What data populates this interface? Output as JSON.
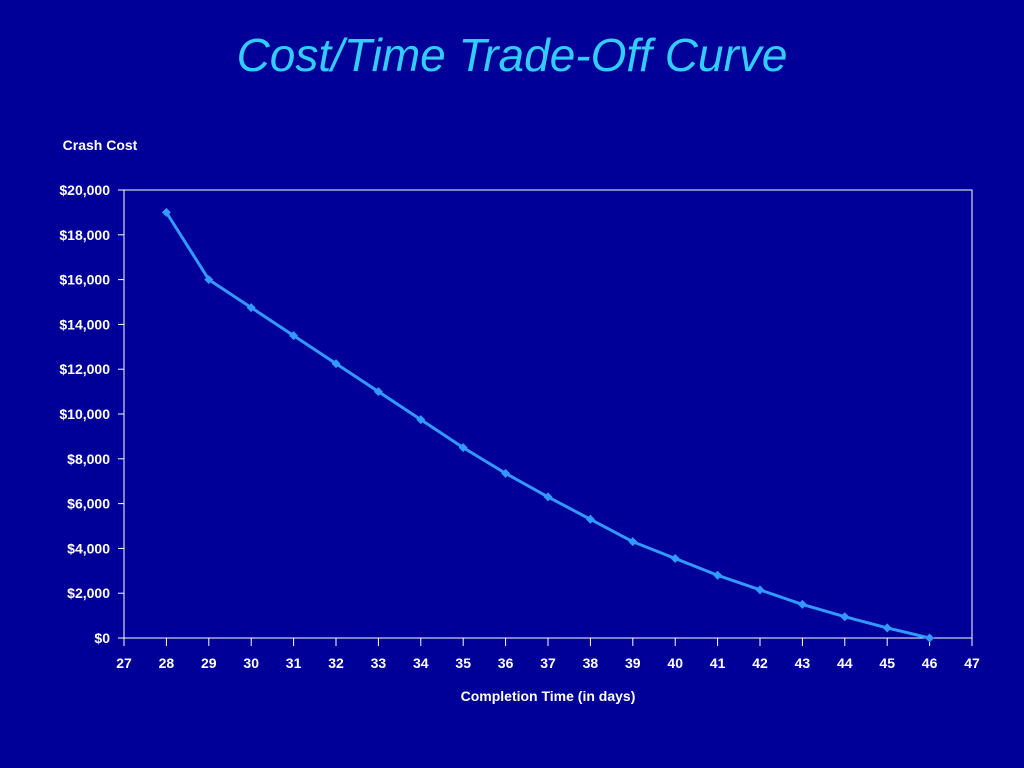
{
  "slide": {
    "title": "Cost/Time Trade-Off Curve",
    "background_color": "#000099",
    "title_color": "#33CCFF"
  },
  "chart_data": {
    "type": "line",
    "title": "",
    "xlabel": "Completion Time (in days)",
    "ylabel": "Crash Cost",
    "xlim": [
      27,
      47
    ],
    "ylim": [
      0,
      20000
    ],
    "x_ticks": [
      27,
      28,
      29,
      30,
      31,
      32,
      33,
      34,
      35,
      36,
      37,
      38,
      39,
      40,
      41,
      42,
      43,
      44,
      45,
      46,
      47
    ],
    "y_ticks": [
      0,
      2000,
      4000,
      6000,
      8000,
      10000,
      12000,
      14000,
      16000,
      18000,
      20000
    ],
    "y_tick_labels": [
      "$0",
      "$2,000",
      "$4,000",
      "$6,000",
      "$8,000",
      "$10,000",
      "$12,000",
      "$14,000",
      "$16,000",
      "$18,000",
      "$20,000"
    ],
    "grid": false,
    "line_color": "#3399FF",
    "axis_color": "#FFFFFF",
    "series": [
      {
        "marker": "diamond",
        "points": [
          {
            "x": 28,
            "y": 19000
          },
          {
            "x": 29,
            "y": 16000
          },
          {
            "x": 30,
            "y": 14750
          },
          {
            "x": 31,
            "y": 13500
          },
          {
            "x": 32,
            "y": 12250
          },
          {
            "x": 33,
            "y": 11000
          },
          {
            "x": 34,
            "y": 9750
          },
          {
            "x": 35,
            "y": 8500
          },
          {
            "x": 36,
            "y": 7350
          },
          {
            "x": 37,
            "y": 6300
          },
          {
            "x": 38,
            "y": 5300
          },
          {
            "x": 39,
            "y": 4300
          },
          {
            "x": 40,
            "y": 3550
          },
          {
            "x": 41,
            "y": 2800
          },
          {
            "x": 42,
            "y": 2150
          },
          {
            "x": 43,
            "y": 1500
          },
          {
            "x": 44,
            "y": 950
          },
          {
            "x": 45,
            "y": 450
          },
          {
            "x": 46,
            "y": 0
          }
        ]
      }
    ]
  }
}
